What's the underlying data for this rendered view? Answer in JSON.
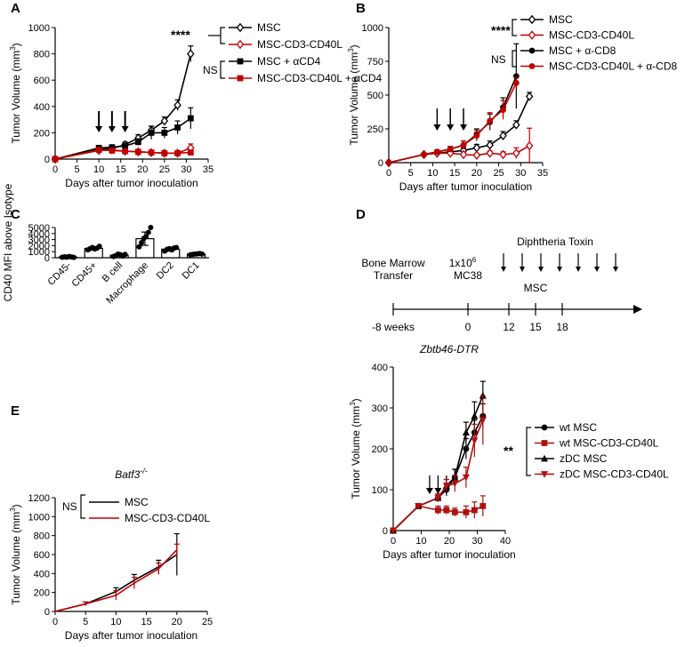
{
  "panels": {
    "A": {
      "label": "A"
    },
    "B": {
      "label": "B"
    },
    "C": {
      "label": "C"
    },
    "D": {
      "label": "D"
    },
    "E": {
      "label": "E"
    }
  },
  "colors": {
    "black": "#000000",
    "red": "#c00000",
    "darkred": "#b01010"
  },
  "chart_data": [
    {
      "id": "A",
      "type": "line",
      "xlabel": "Days after tumor inoculation",
      "ylabel": "Tumor Volume (mm",
      "ylabel_sup": "3",
      "ylabel_end": ")",
      "xlim": [
        0,
        35
      ],
      "ylim": [
        0,
        1000
      ],
      "xticks": [
        0,
        5,
        10,
        15,
        20,
        25,
        30,
        35
      ],
      "yticks": [
        0,
        200,
        400,
        600,
        800,
        1000
      ],
      "arrows_days": [
        10,
        13,
        16
      ],
      "series": [
        {
          "name": "MSC",
          "color": "#000000",
          "marker": "diamond-open",
          "x": [
            0,
            10,
            13,
            16,
            19,
            22,
            25,
            28,
            31
          ],
          "y": [
            0,
            75,
            80,
            110,
            160,
            220,
            290,
            410,
            800
          ],
          "err": [
            0,
            10,
            12,
            20,
            25,
            30,
            30,
            40,
            60
          ]
        },
        {
          "name": "MSC-CD3-CD40L",
          "color": "#c00000",
          "marker": "diamond-open",
          "x": [
            0,
            10,
            13,
            16,
            19,
            22,
            25,
            28,
            31
          ],
          "y": [
            0,
            65,
            70,
            60,
            55,
            50,
            45,
            45,
            85
          ],
          "err": [
            0,
            10,
            10,
            10,
            10,
            10,
            10,
            10,
            30
          ]
        },
        {
          "name": "MSC + αCD4",
          "color": "#000000",
          "marker": "square",
          "x": [
            0,
            10,
            13,
            16,
            19,
            22,
            25,
            28,
            31
          ],
          "y": [
            0,
            85,
            90,
            100,
            130,
            200,
            200,
            240,
            310
          ],
          "err": [
            0,
            10,
            12,
            20,
            25,
            50,
            40,
            50,
            80
          ]
        },
        {
          "name": "MSC-CD3-CD40L + αCD4",
          "color": "#c00000",
          "marker": "square",
          "x": [
            0,
            10,
            13,
            16,
            19,
            22,
            25,
            28,
            31
          ],
          "y": [
            0,
            70,
            65,
            60,
            55,
            50,
            45,
            45,
            50
          ],
          "err": [
            0,
            10,
            10,
            10,
            10,
            10,
            10,
            10,
            10
          ]
        }
      ],
      "annotations": [
        {
          "text": "****"
        },
        {
          "text": "NS"
        }
      ]
    },
    {
      "id": "B",
      "type": "line",
      "xlabel": "Days after tumor inoculation",
      "ylabel": "Tumor Volume (mm",
      "ylabel_sup": "3",
      "ylabel_end": ")",
      "xlim": [
        0,
        35
      ],
      "ylim": [
        0,
        1000
      ],
      "xticks": [
        0,
        5,
        10,
        15,
        20,
        25,
        30,
        35
      ],
      "yticks": [
        0,
        250,
        500,
        750,
        1000
      ],
      "arrows_days": [
        11,
        14,
        17
      ],
      "series": [
        {
          "name": "MSC",
          "color": "#000000",
          "marker": "diamond-open",
          "x": [
            0,
            8,
            11,
            14,
            17,
            20,
            23,
            26,
            29,
            32
          ],
          "y": [
            0,
            60,
            70,
            80,
            90,
            110,
            130,
            200,
            280,
            490
          ],
          "err": [
            0,
            10,
            10,
            15,
            20,
            25,
            30,
            30,
            30,
            30
          ]
        },
        {
          "name": "MSC-CD3-CD40L",
          "color": "#c00000",
          "marker": "diamond-open",
          "x": [
            0,
            8,
            11,
            14,
            17,
            20,
            23,
            26,
            29,
            32
          ],
          "y": [
            0,
            60,
            70,
            70,
            60,
            55,
            70,
            60,
            70,
            125
          ],
          "err": [
            0,
            10,
            10,
            10,
            10,
            10,
            15,
            20,
            40,
            130
          ]
        },
        {
          "name": "MSC + α-CD8",
          "color": "#000000",
          "marker": "circle",
          "x": [
            0,
            8,
            11,
            14,
            17,
            20,
            23,
            26,
            29
          ],
          "y": [
            0,
            60,
            80,
            100,
            130,
            210,
            300,
            410,
            640
          ],
          "err": [
            0,
            10,
            15,
            20,
            30,
            40,
            60,
            70,
            240
          ]
        },
        {
          "name": "MSC-CD3-CD40L + α-CD8",
          "color": "#c00000",
          "marker": "circle",
          "x": [
            0,
            8,
            11,
            14,
            17,
            20,
            23,
            26,
            29
          ],
          "y": [
            0,
            60,
            80,
            100,
            130,
            200,
            310,
            390,
            590
          ],
          "err": [
            0,
            10,
            15,
            20,
            30,
            40,
            60,
            70,
            40
          ]
        }
      ],
      "annotations": [
        {
          "text": "****"
        },
        {
          "text": "NS"
        }
      ]
    },
    {
      "id": "C",
      "type": "bar",
      "ylabel": "CD40 MFI above Isotype",
      "ylim": [
        0,
        5000
      ],
      "yticks": [
        0,
        1000,
        2000,
        3000,
        4000,
        5000
      ],
      "categories": [
        "CD45-",
        "CD45+",
        "B cell",
        "Macrophage",
        "DC2",
        "DC1"
      ],
      "values": [
        120,
        1550,
        420,
        3150,
        1420,
        600
      ],
      "err": [
        60,
        200,
        220,
        1100,
        330,
        100
      ],
      "points": [
        [
          80,
          150,
          100,
          200,
          130,
          60
        ],
        [
          1300,
          1500,
          1700,
          1450,
          1600,
          1900
        ],
        [
          200,
          350,
          600,
          500,
          300,
          550
        ],
        [
          1800,
          2500,
          3200,
          3500,
          4200,
          5000
        ],
        [
          1100,
          1400,
          1500,
          1300,
          1600,
          1700
        ],
        [
          500,
          550,
          600,
          650,
          700,
          600
        ]
      ]
    },
    {
      "id": "D",
      "type": "line",
      "title": "Zbtb46-DTR",
      "xlabel": "Days after tumor inoculation",
      "ylabel": "Tumor Volume (mm",
      "ylabel_sup": "3",
      "ylabel_end": ")",
      "xlim": [
        0,
        40
      ],
      "ylim": [
        0,
        400
      ],
      "xticks": [
        0,
        10,
        20,
        30,
        40
      ],
      "yticks": [
        0,
        100,
        200,
        300,
        400
      ],
      "arrows_days": [
        13,
        16,
        19
      ],
      "series": [
        {
          "name": "wt MSC",
          "color": "#000000",
          "marker": "circle",
          "x": [
            0,
            9,
            16,
            19,
            22,
            26,
            29,
            32
          ],
          "y": [
            0,
            60,
            80,
            100,
            130,
            200,
            240,
            280
          ],
          "err": [
            0,
            5,
            10,
            15,
            20,
            25,
            30,
            30
          ]
        },
        {
          "name": "wt MSC-CD3-CD40L",
          "color": "#b01010",
          "marker": "square",
          "x": [
            0,
            9,
            16,
            19,
            22,
            26,
            29,
            32
          ],
          "y": [
            0,
            60,
            50,
            50,
            45,
            45,
            50,
            60
          ],
          "err": [
            0,
            5,
            10,
            10,
            10,
            15,
            20,
            25
          ]
        },
        {
          "name": "zDC MSC",
          "color": "#000000",
          "marker": "triangle",
          "x": [
            0,
            9,
            16,
            19,
            22,
            26,
            29,
            32
          ],
          "y": [
            0,
            60,
            80,
            110,
            130,
            240,
            280,
            330
          ],
          "err": [
            0,
            5,
            10,
            15,
            20,
            25,
            35,
            35
          ]
        },
        {
          "name": "zDC MSC-CD3-CD40L",
          "color": "#b01010",
          "marker": "triangle-down",
          "x": [
            0,
            9,
            16,
            19,
            22,
            26,
            29,
            32
          ],
          "y": [
            0,
            60,
            80,
            110,
            115,
            130,
            220,
            270
          ],
          "err": [
            0,
            5,
            10,
            15,
            20,
            25,
            40,
            60
          ]
        }
      ],
      "annotations": [
        {
          "text": "**"
        }
      ]
    },
    {
      "id": "E",
      "type": "line",
      "title": "Batf3",
      "title_sup": "-/-",
      "xlabel": "Days after tumor inoculation",
      "ylabel": "Tumor Volume (mm",
      "ylabel_sup": "3",
      "ylabel_end": ")",
      "xlim": [
        0,
        25
      ],
      "ylim": [
        0,
        1200
      ],
      "xticks": [
        0,
        5,
        10,
        15,
        20,
        25
      ],
      "yticks": [
        0,
        200,
        400,
        600,
        800,
        1000,
        1200
      ],
      "series": [
        {
          "name": "MSC",
          "color": "#000000",
          "marker": "none",
          "x": [
            0,
            5,
            10,
            13,
            17,
            20
          ],
          "y": [
            0,
            80,
            210,
            330,
            470,
            600
          ],
          "err": [
            0,
            20,
            40,
            60,
            70,
            220
          ]
        },
        {
          "name": "MSC-CD3-CD40L",
          "color": "#c00000",
          "marker": "none",
          "x": [
            0,
            5,
            10,
            13,
            17,
            20
          ],
          "y": [
            0,
            80,
            170,
            300,
            450,
            650
          ],
          "err": [
            0,
            20,
            50,
            60,
            60,
            60
          ]
        }
      ],
      "annotations": [
        {
          "text": "NS"
        }
      ]
    }
  ],
  "timeline": {
    "bmt_line1": "Bone Marrow",
    "bmt_line2": "Transfer",
    "cells_line1": "1x10",
    "cells_sup": "6",
    "cells_line2": "MC38",
    "toxin": "Diphtheria Toxin",
    "msc": "MSC",
    "ticks": [
      "-8 weeks",
      "0",
      "12",
      "15",
      "18"
    ]
  }
}
